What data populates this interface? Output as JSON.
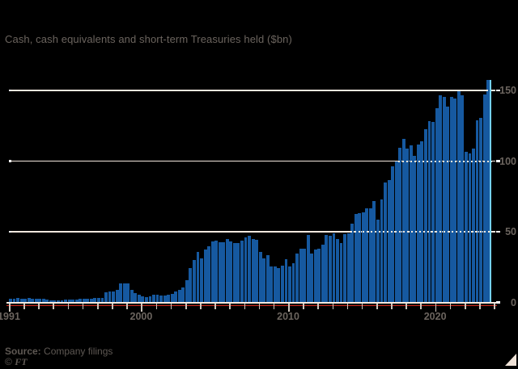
{
  "title": "Cash, cash equivalents and short-term Treasuries held ($bn)",
  "footer": {
    "source_label": "Source:",
    "source_text": "Company filings",
    "copyright_symbol": "©",
    "copyright_brand": "FT"
  },
  "y_axis": {
    "labels": [
      "0",
      "50",
      "100",
      "150"
    ]
  },
  "x_axis": {
    "labels": [
      "1991",
      "2000",
      "2010",
      "2020"
    ]
  },
  "chart_data": {
    "type": "bar",
    "title": "Cash, cash equivalents and short-term Treasuries held ($bn)",
    "ylabel": "$bn",
    "frequency": "quarterly",
    "start_year": 1991,
    "end_period": "2023-Q3",
    "ylim": [
      0,
      160
    ],
    "y_ticks": [
      0,
      50,
      100,
      150
    ],
    "x_labeled_ticks": [
      1991,
      2000,
      2010,
      2020
    ],
    "x_minor_tick_interval_years": 1,
    "x_axis_last_tick_year": 2024,
    "grid": "horizontal, dotted where crossing bars",
    "legend_position": "none",
    "series": [
      {
        "name": "Cash, cash equivalents and short-term Treasuries held",
        "values": [
          2.5,
          2.8,
          3.0,
          2.6,
          2.8,
          3.0,
          2.7,
          2.5,
          2.6,
          2.4,
          1.8,
          1.4,
          1.2,
          1.4,
          1.7,
          2.0,
          2.2,
          2.0,
          2.2,
          2.4,
          2.6,
          2.8,
          2.6,
          3.0,
          3.0,
          3.2,
          7.0,
          7.5,
          8.0,
          9.0,
          13.5,
          13.6,
          13.4,
          9.0,
          6.5,
          5.5,
          4.2,
          3.8,
          4.5,
          5.2,
          5.5,
          5.0,
          4.8,
          5.3,
          6.0,
          7.5,
          9.0,
          10.3,
          16.0,
          24.4,
          30.0,
          35.7,
          31.2,
          37.2,
          39.6,
          43.4,
          44.0,
          42.5,
          42.3,
          44.7,
          42.9,
          42.2,
          42.0,
          43.7,
          46.0,
          47.0,
          45.1,
          44.3,
          35.6,
          31.2,
          33.4,
          25.5,
          25.6,
          24.5,
          26.0,
          30.6,
          25.7,
          27.9,
          34.5,
          38.2,
          38.2,
          47.9,
          34.8,
          37.3,
          37.8,
          40.7,
          47.8,
          47.0,
          49.1,
          44.7,
          42.1,
          48.2,
          48.9,
          55.5,
          62.4,
          63.3,
          63.7,
          66.6,
          66.3,
          71.7,
          58.3,
          72.7,
          84.8,
          86.4,
          96.5,
          99.7,
          109.3,
          116.0,
          108.6,
          111.1,
          103.6,
          111.9,
          114.2,
          122.4,
          128.2,
          128.0,
          137.3,
          146.6,
          145.7,
          138.3,
          145.4,
          144.1,
          149.2,
          146.7,
          106.3,
          105.4,
          109.0,
          128.6,
          130.6,
          147.4,
          157.2
        ]
      }
    ],
    "style": {
      "background_color": "#000000",
      "bar_color": "#1659A0",
      "latest_bar_edge_color": "#74D2F0",
      "grid_color": "#F2E8DE",
      "grid_accent_color": "#FFFFFF",
      "axis_red_line_color": "#D6281B",
      "tick_color": "#CEC5BC",
      "label_color": "#6B645E",
      "triangle_color": "#EFE2D7"
    }
  }
}
